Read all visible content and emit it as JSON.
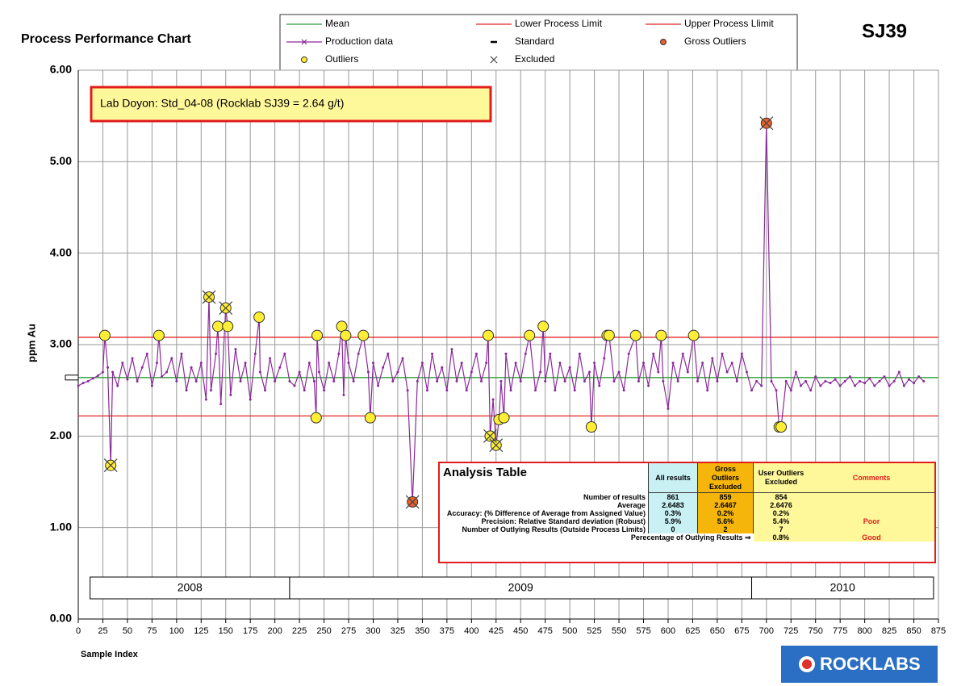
{
  "chart_data": {
    "type": "line",
    "title": "Process Performance Chart",
    "code": "SJ39",
    "ylabel": "ppm Au",
    "xlabel": "Sample Index",
    "annotation": "Lab Doyon:  Std_04-08 (Rocklab SJ39 = 2.64 g/t)",
    "logo": "ROCKLABS",
    "xlim": [
      0,
      875
    ],
    "xticks": [
      0,
      25,
      50,
      75,
      100,
      125,
      150,
      175,
      200,
      225,
      250,
      275,
      300,
      325,
      350,
      375,
      400,
      425,
      450,
      475,
      500,
      525,
      550,
      575,
      600,
      625,
      650,
      675,
      700,
      725,
      750,
      775,
      800,
      825,
      850,
      875
    ],
    "ylim": [
      0,
      6
    ],
    "yticks": [
      {
        "value": 0,
        "label": "0.00"
      },
      {
        "value": 1,
        "label": "1.00"
      },
      {
        "value": 2,
        "label": "2.00"
      },
      {
        "value": 3,
        "label": "3.00"
      },
      {
        "value": 4,
        "label": "4.00"
      },
      {
        "value": 5,
        "label": "5.00"
      },
      {
        "value": 6,
        "label": "6.00"
      }
    ],
    "grid": true,
    "reference_lines": [
      {
        "name": "Mean",
        "color": "#2e9e3e",
        "value": 2.64
      },
      {
        "name": "Lower Process Limit",
        "color": "#e02828",
        "value": 2.22
      },
      {
        "name": "Upper Process Llimit",
        "color": "#e02828",
        "value": 3.08
      }
    ],
    "series": [
      {
        "name": "Production data",
        "color": "#8a2a9a",
        "x": [
          0,
          5,
          10,
          15,
          20,
          25,
          27,
          30,
          33,
          35,
          40,
          45,
          50,
          55,
          60,
          65,
          70,
          75,
          80,
          82,
          85,
          90,
          95,
          100,
          105,
          110,
          115,
          120,
          125,
          130,
          133,
          135,
          140,
          142,
          145,
          150,
          152,
          155,
          160,
          165,
          170,
          175,
          180,
          184,
          185,
          190,
          195,
          200,
          205,
          210,
          215,
          220,
          225,
          230,
          235,
          240,
          242,
          243,
          245,
          250,
          255,
          260,
          265,
          268,
          270,
          272,
          275,
          280,
          285,
          290,
          295,
          297,
          300,
          305,
          310,
          315,
          320,
          325,
          330,
          335,
          340,
          345,
          350,
          355,
          360,
          365,
          370,
          375,
          380,
          385,
          390,
          395,
          400,
          405,
          410,
          415,
          417,
          419,
          422,
          425,
          428,
          430,
          433,
          435,
          440,
          445,
          450,
          455,
          459,
          465,
          470,
          473,
          475,
          480,
          485,
          490,
          495,
          500,
          505,
          510,
          515,
          520,
          522,
          525,
          530,
          535,
          538,
          540,
          545,
          550,
          555,
          560,
          567,
          570,
          575,
          580,
          585,
          590,
          593,
          595,
          600,
          605,
          610,
          615,
          620,
          626,
          630,
          635,
          640,
          645,
          650,
          655,
          660,
          665,
          670,
          675,
          680,
          685,
          690,
          695,
          700,
          705,
          710,
          713,
          715,
          720,
          725,
          730,
          735,
          740,
          745,
          750,
          755,
          760,
          765,
          770,
          775,
          780,
          785,
          790,
          795,
          800,
          805,
          810,
          815,
          820,
          825,
          830,
          835,
          840,
          845,
          850,
          855,
          860
        ],
        "values": [
          2.55,
          2.58,
          2.6,
          2.63,
          2.66,
          2.7,
          3.1,
          2.75,
          1.68,
          2.7,
          2.55,
          2.8,
          2.62,
          2.85,
          2.6,
          2.75,
          2.9,
          2.55,
          2.8,
          3.1,
          2.65,
          2.7,
          2.85,
          2.6,
          2.9,
          2.5,
          2.75,
          2.6,
          2.8,
          2.4,
          3.52,
          2.5,
          2.9,
          3.2,
          2.35,
          3.4,
          3.2,
          2.45,
          2.95,
          2.6,
          2.8,
          2.4,
          2.9,
          3.3,
          2.7,
          2.5,
          2.85,
          2.6,
          2.75,
          2.9,
          2.6,
          2.55,
          2.7,
          2.5,
          2.8,
          2.6,
          2.2,
          3.1,
          2.7,
          2.5,
          2.8,
          2.6,
          2.9,
          3.2,
          2.45,
          3.1,
          2.8,
          2.6,
          2.9,
          3.1,
          2.7,
          2.2,
          2.8,
          2.55,
          2.75,
          2.9,
          2.6,
          2.7,
          2.85,
          2.5,
          1.28,
          2.6,
          2.8,
          2.5,
          2.9,
          2.6,
          2.75,
          2.5,
          2.95,
          2.6,
          2.8,
          2.5,
          2.7,
          2.9,
          2.6,
          2.8,
          3.1,
          2.0,
          2.4,
          1.9,
          2.18,
          2.6,
          2.2,
          2.9,
          2.5,
          2.8,
          2.6,
          2.9,
          3.1,
          2.5,
          2.7,
          3.2,
          2.6,
          2.9,
          2.5,
          2.8,
          2.6,
          2.75,
          2.5,
          2.9,
          2.6,
          2.7,
          2.1,
          2.8,
          2.55,
          2.85,
          3.1,
          3.1,
          2.6,
          2.7,
          2.5,
          2.9,
          3.1,
          2.6,
          2.8,
          2.55,
          2.9,
          2.7,
          3.1,
          2.6,
          2.3,
          2.8,
          2.6,
          2.9,
          2.7,
          3.1,
          2.6,
          2.8,
          2.5,
          2.85,
          2.6,
          2.9,
          2.7,
          2.8,
          2.6,
          2.9,
          2.7,
          2.5,
          2.6,
          2.55,
          5.42,
          2.6,
          2.5,
          2.1,
          2.1,
          2.6,
          2.5,
          2.7,
          2.55,
          2.6,
          2.5,
          2.65,
          2.55,
          2.6,
          2.58,
          2.62,
          2.55,
          2.6,
          2.65,
          2.55,
          2.6,
          2.58,
          2.63,
          2.55,
          2.6,
          2.65,
          2.55,
          2.6,
          2.7,
          2.55,
          2.62,
          2.58,
          2.65,
          2.6
        ]
      },
      {
        "name": "Standard",
        "color": "#000000",
        "x": [
          0
        ],
        "values": [
          2.64
        ]
      },
      {
        "name": "Gross Outliers",
        "color": "#e8602a",
        "x": [
          340,
          700
        ],
        "values": [
          1.28,
          5.42
        ]
      },
      {
        "name": "Outliers",
        "color": "#ffee33",
        "x": [
          27,
          33,
          82,
          133,
          142,
          150,
          152,
          184,
          242,
          243,
          268,
          272,
          290,
          297,
          417,
          419,
          425,
          428,
          433,
          459,
          473,
          522,
          538,
          540,
          567,
          593,
          626,
          713,
          715
        ],
        "values": [
          3.1,
          1.68,
          3.1,
          3.52,
          3.2,
          3.4,
          3.2,
          3.3,
          2.2,
          3.1,
          3.2,
          3.1,
          3.1,
          2.2,
          3.1,
          2.0,
          1.9,
          2.18,
          2.2,
          3.1,
          3.2,
          2.1,
          3.1,
          3.1,
          3.1,
          3.1,
          3.1,
          2.1,
          2.1
        ]
      },
      {
        "name": "Excluded",
        "color": "#444444",
        "x": [
          33,
          133,
          150,
          340,
          419,
          425,
          700
        ],
        "values": [
          1.68,
          3.52,
          3.4,
          1.28,
          2.0,
          1.9,
          5.42
        ]
      }
    ],
    "periods": [
      {
        "label": "2008",
        "start": 12,
        "end": 215
      },
      {
        "label": "2009",
        "start": 215,
        "end": 685
      },
      {
        "label": "2010",
        "start": 685,
        "end": 870
      }
    ],
    "analysis_table": {
      "title": "Analysis Table",
      "headers": [
        "All results",
        "Gross Outliers Excluded",
        "User Outliers Excluded",
        "Comments"
      ],
      "rows": [
        {
          "label": "Number of results",
          "cells": [
            "861",
            "859",
            "854"
          ]
        },
        {
          "label": "Average",
          "cells": [
            "2.6483",
            "2.6467",
            "2.6476"
          ]
        },
        {
          "label": "Accuracy: (% Difference of Average from Assigned Value)",
          "cells": [
            "0.3%",
            "0.2%",
            "0.2%"
          ]
        },
        {
          "label": "Precision: Relative Standard deviation (Robust)",
          "cells": [
            "5.9%",
            "5.6%",
            "5.4%"
          ],
          "comment": "Poor"
        },
        {
          "label": "Number of Outlying Results (Outside Process Limits)",
          "cells": [
            "0",
            "2",
            "7"
          ]
        }
      ],
      "footer": {
        "label": "Perecentage of Outlying Results ⇒",
        "value": "0.8%",
        "comment": "Good"
      }
    }
  }
}
